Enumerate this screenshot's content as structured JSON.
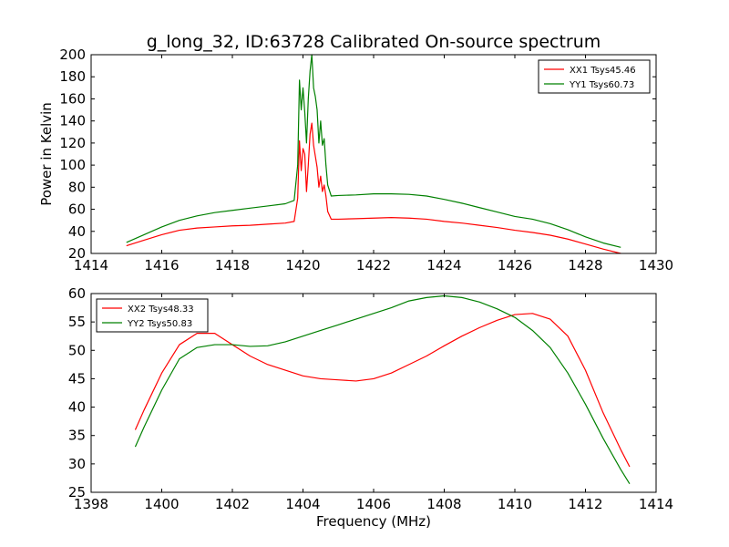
{
  "chart_data": [
    {
      "type": "line",
      "title": "g_long_32, ID:63728 Calibrated On-source spectrum",
      "xlabel": "",
      "ylabel": "Power in Kelvin",
      "xlim": [
        1414,
        1430
      ],
      "ylim": [
        20,
        200
      ],
      "xticks": [
        1414,
        1416,
        1418,
        1420,
        1422,
        1424,
        1426,
        1428,
        1430
      ],
      "yticks": [
        20,
        40,
        60,
        80,
        100,
        120,
        140,
        160,
        180,
        200
      ],
      "legend_position": "upper right",
      "series": [
        {
          "name": "XX1 Tsys45.46",
          "color": "#ff0000",
          "x": [
            1415.0,
            1415.5,
            1416.0,
            1416.5,
            1417.0,
            1417.5,
            1418.0,
            1418.5,
            1419.0,
            1419.5,
            1419.75,
            1419.85,
            1419.9,
            1419.95,
            1420.0,
            1420.05,
            1420.1,
            1420.15,
            1420.2,
            1420.25,
            1420.3,
            1420.35,
            1420.4,
            1420.45,
            1420.5,
            1420.55,
            1420.6,
            1420.65,
            1420.7,
            1420.8,
            1421.0,
            1421.5,
            1422.0,
            1422.5,
            1423.0,
            1423.5,
            1424.0,
            1424.5,
            1425.0,
            1425.5,
            1426.0,
            1426.5,
            1427.0,
            1427.5,
            1428.0,
            1428.5,
            1429.0
          ],
          "y": [
            27,
            32,
            37,
            41,
            43,
            44,
            45,
            45.5,
            46.5,
            47.5,
            49,
            70,
            122,
            95,
            115,
            110,
            76,
            100,
            128,
            138,
            118,
            108,
            98,
            80,
            90,
            76,
            82,
            72,
            58,
            51,
            51,
            51.5,
            52,
            52.5,
            52,
            51,
            49,
            47.5,
            45.5,
            43.5,
            41,
            39,
            36.5,
            33,
            28.5,
            24,
            20
          ]
        },
        {
          "name": "YY1 Tsys60.73",
          "color": "#008000",
          "x": [
            1415.0,
            1415.5,
            1416.0,
            1416.5,
            1417.0,
            1417.5,
            1418.0,
            1418.5,
            1419.0,
            1419.5,
            1419.75,
            1419.85,
            1419.9,
            1419.95,
            1420.0,
            1420.05,
            1420.1,
            1420.15,
            1420.2,
            1420.25,
            1420.3,
            1420.35,
            1420.4,
            1420.45,
            1420.5,
            1420.55,
            1420.6,
            1420.65,
            1420.7,
            1420.8,
            1421.0,
            1421.5,
            1422.0,
            1422.5,
            1423.0,
            1423.5,
            1424.0,
            1424.5,
            1425.0,
            1425.5,
            1426.0,
            1426.5,
            1427.0,
            1427.5,
            1428.0,
            1428.5,
            1429.0
          ],
          "y": [
            30,
            37,
            44,
            50,
            54,
            57,
            59,
            61,
            63,
            65,
            68,
            100,
            177,
            150,
            170,
            148,
            120,
            160,
            185,
            200,
            170,
            162,
            150,
            120,
            140,
            118,
            124,
            100,
            82,
            72,
            72.5,
            73,
            74,
            74,
            73.5,
            72,
            69,
            65.5,
            61.5,
            57.5,
            53.5,
            51,
            47,
            41.5,
            35,
            29.5,
            25.5
          ]
        }
      ]
    },
    {
      "type": "line",
      "title": "",
      "xlabel": "Frequency (MHz)",
      "ylabel": "",
      "xlim": [
        1398,
        1414
      ],
      "ylim": [
        25,
        60
      ],
      "xticks": [
        1398,
        1400,
        1402,
        1404,
        1406,
        1408,
        1410,
        1412,
        1414
      ],
      "yticks": [
        25,
        30,
        35,
        40,
        45,
        50,
        55,
        60
      ],
      "legend_position": "upper left",
      "series": [
        {
          "name": "XX2 Tsys48.33",
          "color": "#ff0000",
          "x": [
            1399.25,
            1399.5,
            1400.0,
            1400.5,
            1401.0,
            1401.5,
            1402.0,
            1402.5,
            1403.0,
            1403.5,
            1404.0,
            1404.5,
            1405.0,
            1405.5,
            1406.0,
            1406.5,
            1407.0,
            1407.5,
            1408.0,
            1408.5,
            1409.0,
            1409.5,
            1410.0,
            1410.5,
            1411.0,
            1411.5,
            1412.0,
            1412.5,
            1413.0,
            1413.25
          ],
          "y": [
            36,
            39.5,
            46,
            51,
            53,
            53,
            51,
            49,
            47.5,
            46.5,
            45.5,
            45,
            44.8,
            44.6,
            45,
            46,
            47.5,
            49,
            50.8,
            52.5,
            54,
            55.3,
            56.3,
            56.5,
            55.5,
            52.5,
            46.5,
            39,
            32.5,
            29.5
          ]
        },
        {
          "name": "YY2 Tsys50.83",
          "color": "#008000",
          "x": [
            1399.25,
            1399.5,
            1400.0,
            1400.5,
            1401.0,
            1401.5,
            1402.0,
            1402.5,
            1403.0,
            1403.5,
            1404.0,
            1404.5,
            1405.0,
            1405.5,
            1406.0,
            1406.5,
            1407.0,
            1407.5,
            1408.0,
            1408.5,
            1409.0,
            1409.5,
            1410.0,
            1410.5,
            1411.0,
            1411.5,
            1412.0,
            1412.5,
            1413.0,
            1413.25
          ],
          "y": [
            33,
            36.5,
            43,
            48.5,
            50.5,
            51,
            51,
            50.7,
            50.8,
            51.5,
            52.5,
            53.5,
            54.5,
            55.5,
            56.5,
            57.5,
            58.7,
            59.3,
            59.6,
            59.3,
            58.5,
            57.3,
            55.8,
            53.5,
            50.5,
            46,
            40.5,
            34.5,
            29,
            26.5
          ]
        }
      ]
    }
  ]
}
